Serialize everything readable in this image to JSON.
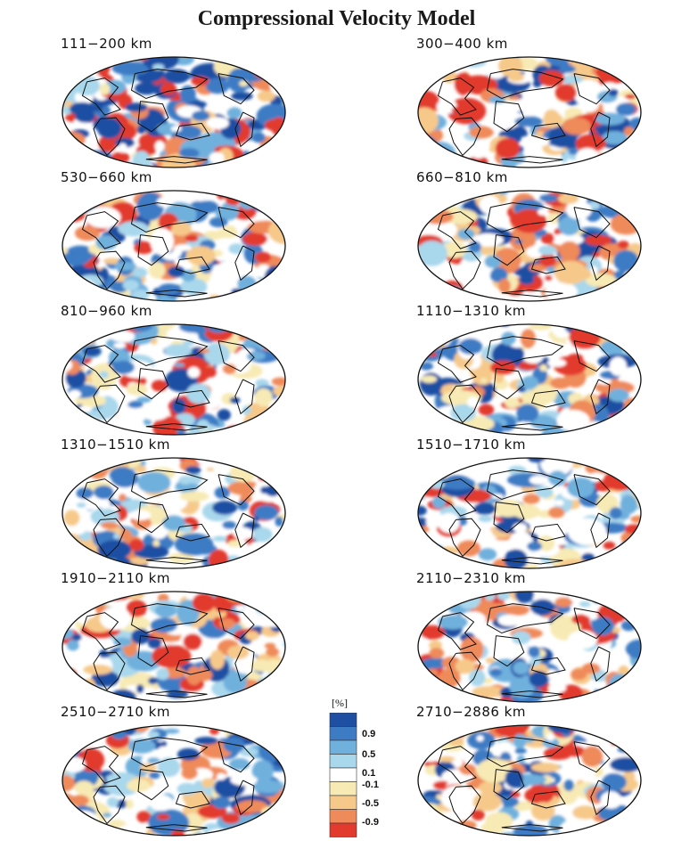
{
  "title": "Compressional Velocity Model",
  "panels": [
    {
      "depth": "111−200  km",
      "intensity": 1.0
    },
    {
      "depth": "300−400  km",
      "intensity": 0.75
    },
    {
      "depth": "530−660  km",
      "intensity": 0.6
    },
    {
      "depth": "660−810  km",
      "intensity": 0.7
    },
    {
      "depth": "810−960  km",
      "intensity": 0.6
    },
    {
      "depth": "1110−1310  km",
      "intensity": 0.5
    },
    {
      "depth": "1310−1510  km",
      "intensity": 0.45
    },
    {
      "depth": "1510−1710  km",
      "intensity": 0.45
    },
    {
      "depth": "1910−2110  km",
      "intensity": 0.5
    },
    {
      "depth": "2110−2310  km",
      "intensity": 0.5
    },
    {
      "depth": "2510−2710  km",
      "intensity": 0.55
    },
    {
      "depth": "2710−2886  km",
      "intensity": 0.65
    }
  ],
  "legend": {
    "unit": "[%]",
    "ticks": [
      "0.9",
      "0.5",
      "0.1",
      "-0.1",
      "-0.5",
      "-0.9"
    ],
    "colors": [
      "#1f4fa3",
      "#3d7cc4",
      "#6fb0dd",
      "#a9d7ec",
      "#ffffff",
      "#f7eab4",
      "#f6c98a",
      "#ef8a5a",
      "#e23b2e"
    ]
  }
}
